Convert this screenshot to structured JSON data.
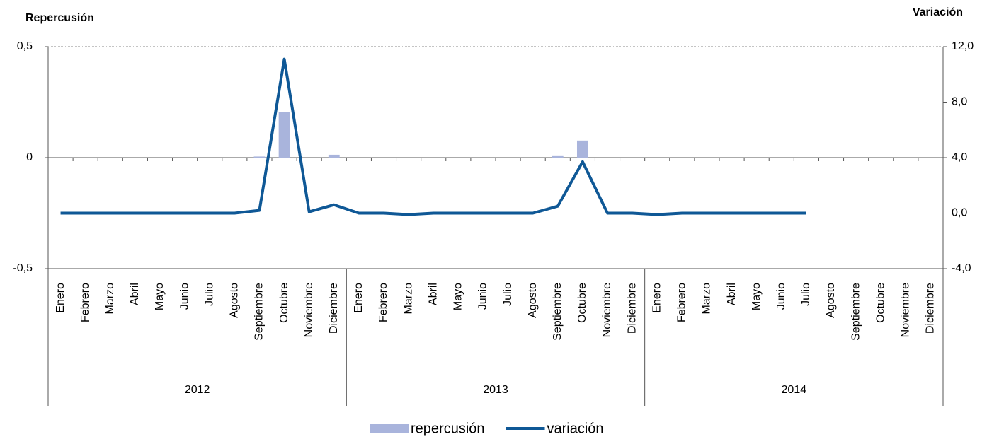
{
  "chart_data": {
    "type": "bar-line",
    "y_label": "Repercusión",
    "y2_label": "Variación",
    "categories": [
      "Enero",
      "Febrero",
      "Marzo",
      "Abril",
      "Mayo",
      "Junio",
      "Julio",
      "Agosto",
      "Septiembre",
      "Octubre",
      "Noviembre",
      "Diciembre",
      "Enero",
      "Febrero",
      "Marzo",
      "Abril",
      "Mayo",
      "Junio",
      "Julio",
      "Agosto",
      "Septiembre",
      "Octubre",
      "Noviembre",
      "Diciembre",
      "Enero",
      "Febrero",
      "Marzo",
      "Abril",
      "Mayo",
      "Junio",
      "Julio",
      "Agosto",
      "Septiembre",
      "Octubre",
      "Noviembre",
      "Diciembre"
    ],
    "groups": [
      "2012",
      "2013",
      "2014"
    ],
    "series": [
      {
        "name": "repercusión",
        "type": "bar",
        "color": "#a9b4dc",
        "values": [
          0,
          0,
          0,
          0,
          0,
          0,
          0,
          0,
          0.005,
          0.204,
          0,
          0.013,
          0,
          0,
          0,
          0,
          0,
          0,
          0,
          0,
          0.01,
          0.077,
          0,
          0,
          0,
          0,
          0,
          0,
          0,
          0,
          0,
          null,
          null,
          null,
          null,
          null
        ]
      },
      {
        "name": "variación",
        "type": "line",
        "axis": "y2",
        "color": "#0f5896",
        "values": [
          0,
          0,
          0,
          0,
          0,
          0,
          0,
          0,
          0.2,
          11.1,
          0.1,
          0.6,
          0,
          0,
          -0.1,
          0,
          0,
          0,
          0,
          0,
          0.5,
          3.7,
          0,
          0,
          -0.1,
          0,
          0,
          0,
          0,
          0,
          0,
          null,
          null,
          null,
          null,
          null
        ]
      }
    ],
    "ylim": [
      -0.5,
      0.5
    ],
    "yticks": [
      {
        "value": -0.5,
        "label": "-0,5"
      },
      0,
      {
        "value": 0.5,
        "label": "0,5"
      }
    ],
    "y2lim": [
      -4,
      12
    ],
    "y2ticks": [
      {
        "value": -4,
        "label": "-4,0"
      },
      {
        "value": 0,
        "label": "0,0"
      },
      {
        "value": 4,
        "label": "4,0"
      },
      {
        "value": 8,
        "label": "8,0"
      },
      {
        "value": 12,
        "label": "12,0"
      }
    ],
    "grid": true
  }
}
